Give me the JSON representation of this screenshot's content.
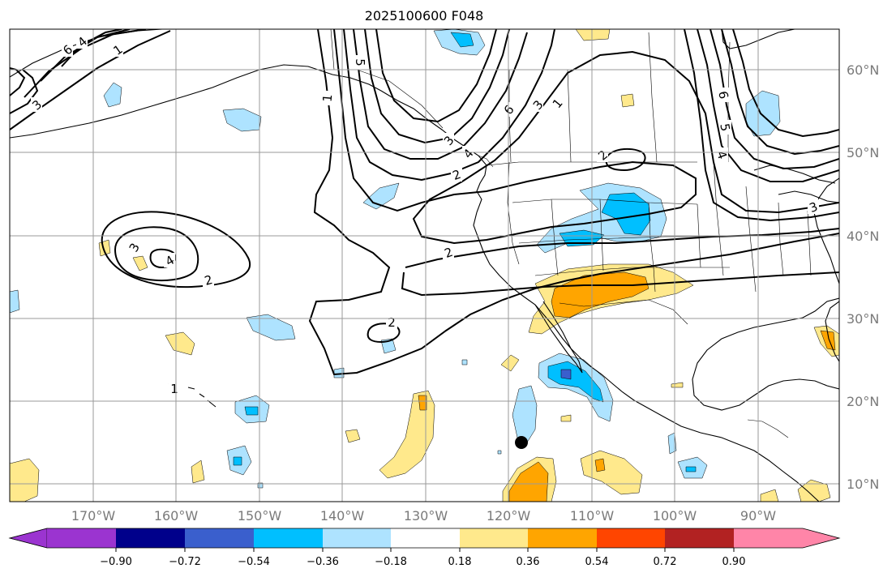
{
  "title": "2025100600 F048",
  "lat_labels": [
    "60°N",
    "50°N",
    "40°N",
    "30°N",
    "20°N",
    "10°N"
  ],
  "lon_labels": [
    "170°W",
    "160°W",
    "150°W",
    "140°W",
    "130°W",
    "120°W",
    "110°W",
    "100°W",
    "90°W"
  ],
  "colorbar": {
    "tick_labels": [
      "−0.90",
      "−0.72",
      "−0.54",
      "−0.36",
      "−0.18",
      "0.18",
      "0.36",
      "0.54",
      "0.72",
      "0.90"
    ],
    "colors": [
      "#9b34d0",
      "#00008b",
      "#3a5fcd",
      "#00bfff",
      "#aee3ff",
      "#ffffff",
      "#ffe98c",
      "#ffa500",
      "#ff4500",
      "#b22222",
      "#ff85a8"
    ]
  },
  "contour_labels": [
    "6",
    "4",
    "3",
    "1",
    "5",
    "1",
    "3",
    "4",
    "6",
    "1",
    "2",
    "6",
    "5",
    "4",
    "3",
    "3",
    "2",
    "2",
    "2",
    "4",
    "3",
    "2",
    "1"
  ],
  "marker": "storm-position-dot"
}
